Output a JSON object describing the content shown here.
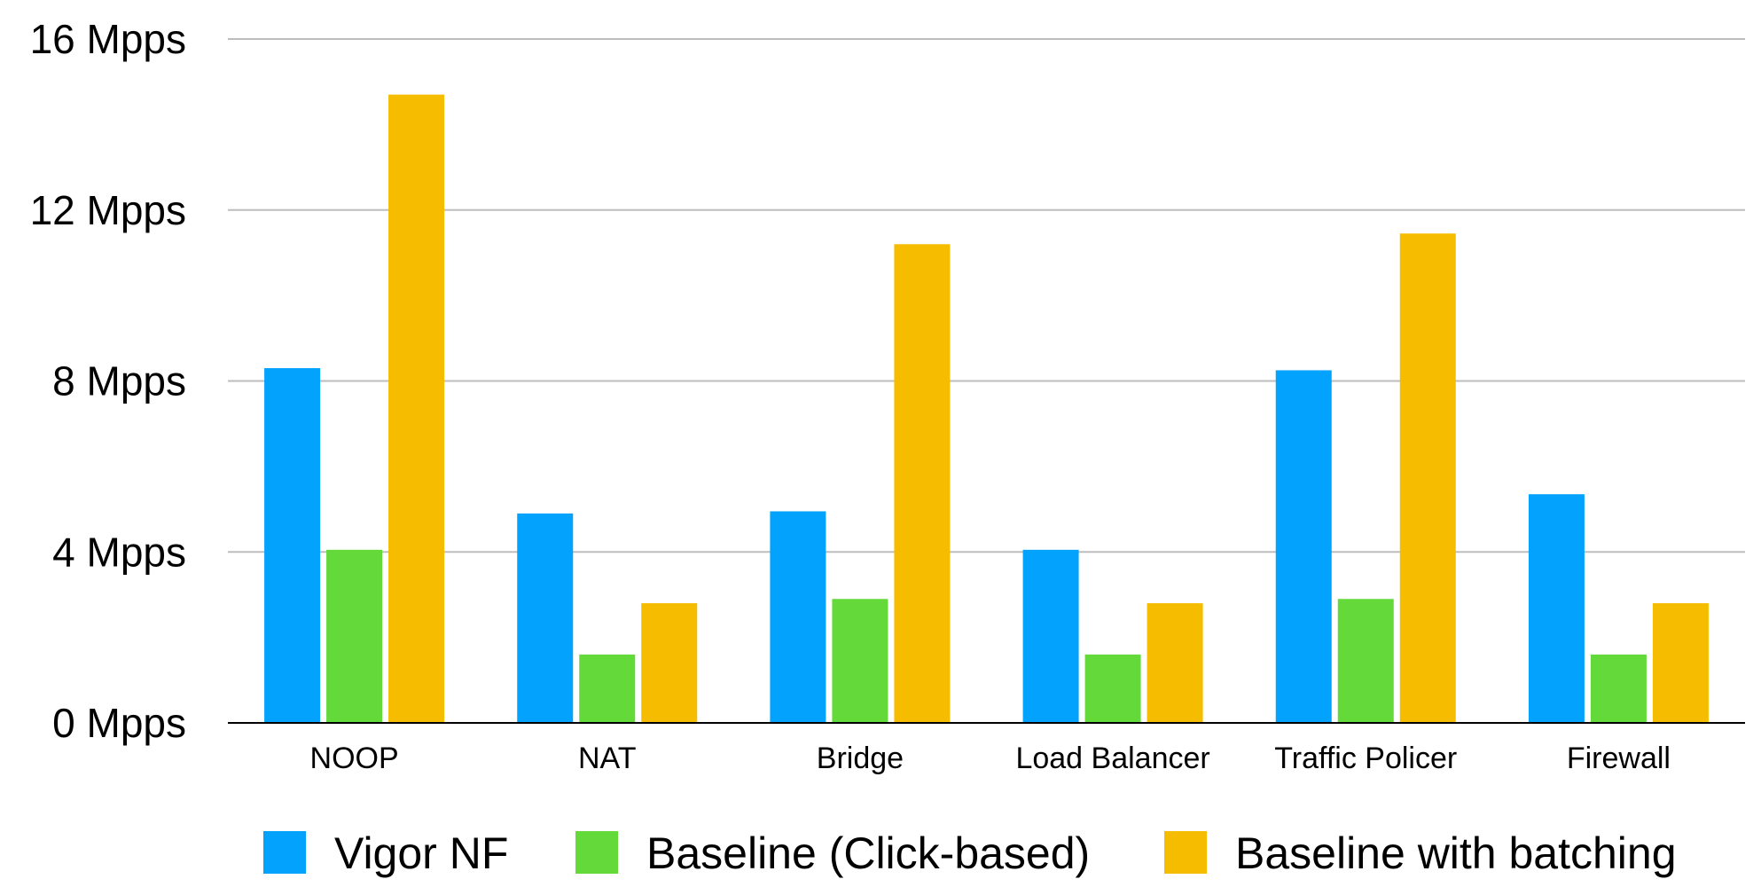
{
  "chart_data": {
    "type": "bar",
    "categories": [
      "NOOP",
      "NAT",
      "Bridge",
      "Load Balancer",
      "Traffic Policer",
      "Firewall"
    ],
    "series": [
      {
        "name": "Vigor NF",
        "color": "#03A2FD",
        "values": [
          8.3,
          4.9,
          4.95,
          4.05,
          8.25,
          5.35
        ]
      },
      {
        "name": "Baseline (Click-based)",
        "color": "#63D93A",
        "values": [
          4.05,
          1.6,
          2.9,
          1.6,
          2.9,
          1.6
        ]
      },
      {
        "name": "Baseline with batching",
        "color": "#F6BC00",
        "values": [
          14.7,
          2.8,
          11.2,
          2.8,
          11.45,
          2.8
        ]
      }
    ],
    "ylim": [
      0,
      16
    ],
    "yticks": [
      0,
      4,
      8,
      12,
      16
    ],
    "ytick_labels": [
      "0 Mpps",
      "4 Mpps",
      "8 Mpps",
      "12 Mpps",
      "16 Mpps"
    ],
    "grid": true,
    "legend": "bottom",
    "xlabel": "",
    "ylabel": "",
    "title": ""
  }
}
